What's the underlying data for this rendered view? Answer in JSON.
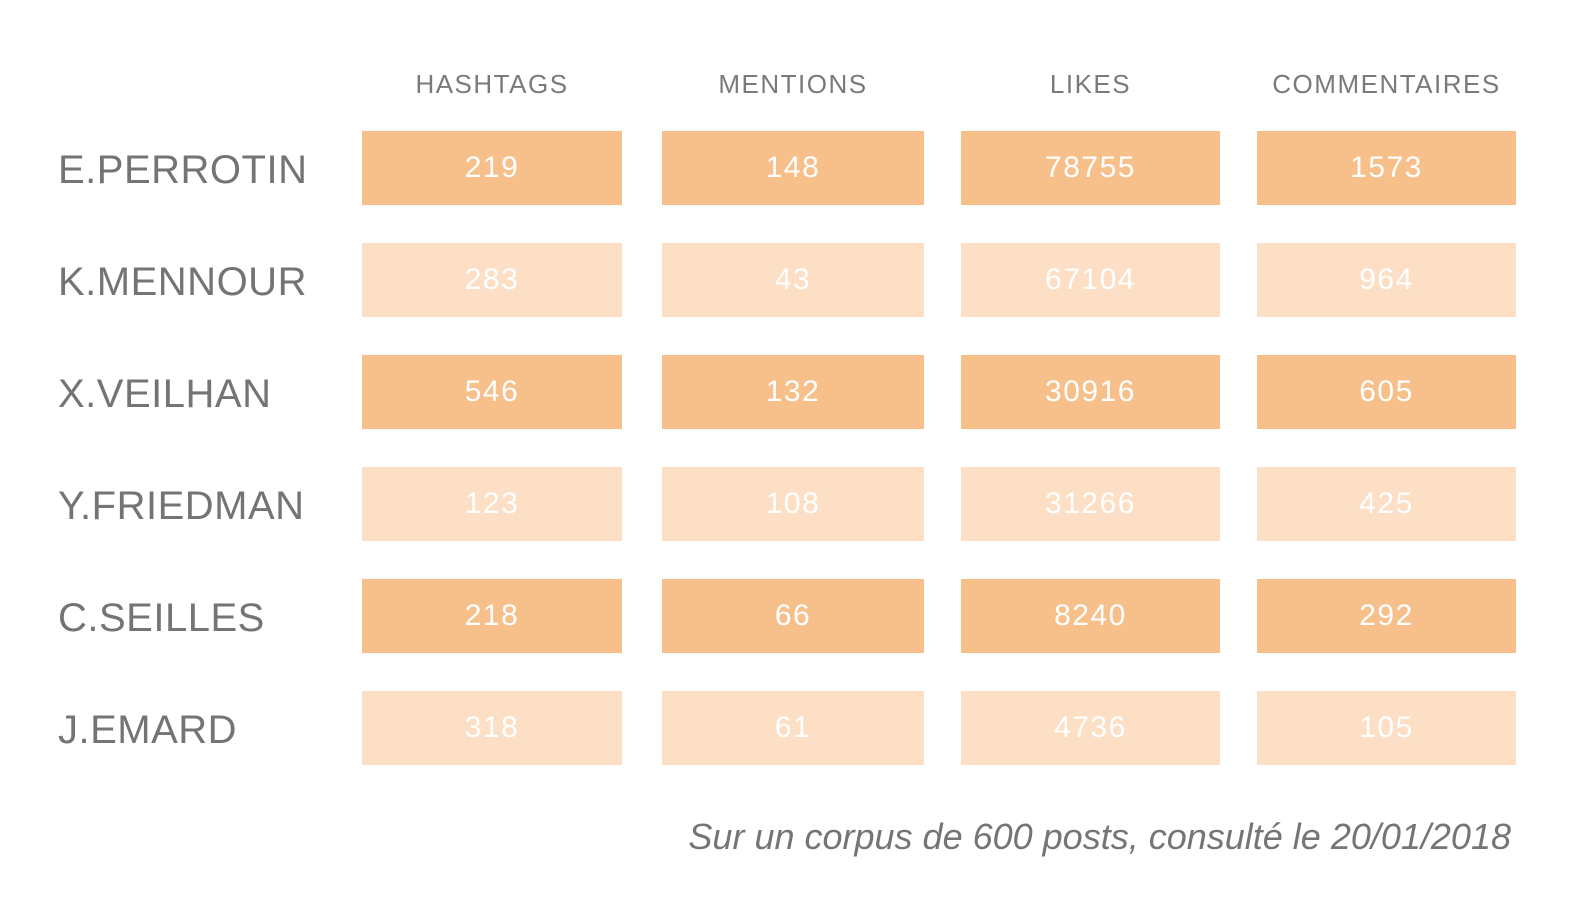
{
  "chart_data": {
    "type": "table",
    "columns": [
      "HASHTAGS",
      "MENTIONS",
      "LIKES",
      "COMMENTAIRES"
    ],
    "rows": [
      {
        "label": "E.PERROTIN",
        "values": [
          "219",
          "148",
          "78755",
          "1573"
        ],
        "shade": "dark"
      },
      {
        "label": "K.MENNOUR",
        "values": [
          "283",
          "43",
          "67104",
          "964"
        ],
        "shade": "light"
      },
      {
        "label": "X.VEILHAN",
        "values": [
          "546",
          "132",
          "30916",
          "605"
        ],
        "shade": "dark"
      },
      {
        "label": "Y.FRIEDMAN",
        "values": [
          "123",
          "108",
          "31266",
          "425"
        ],
        "shade": "light"
      },
      {
        "label": "C.SEILLES",
        "values": [
          "218",
          "66",
          "8240",
          "292"
        ],
        "shade": "dark"
      },
      {
        "label": "J.EMARD",
        "values": [
          "318",
          "61",
          "4736",
          "105"
        ],
        "shade": "light"
      }
    ],
    "footnote": "Sur un corpus de 600 posts, consulté le 20/01/2018"
  },
  "colors": {
    "cell_dark": "#f7c08b",
    "cell_light": "#fcdfc4",
    "cell_text": "#ffffff",
    "label_text": "#747474"
  }
}
